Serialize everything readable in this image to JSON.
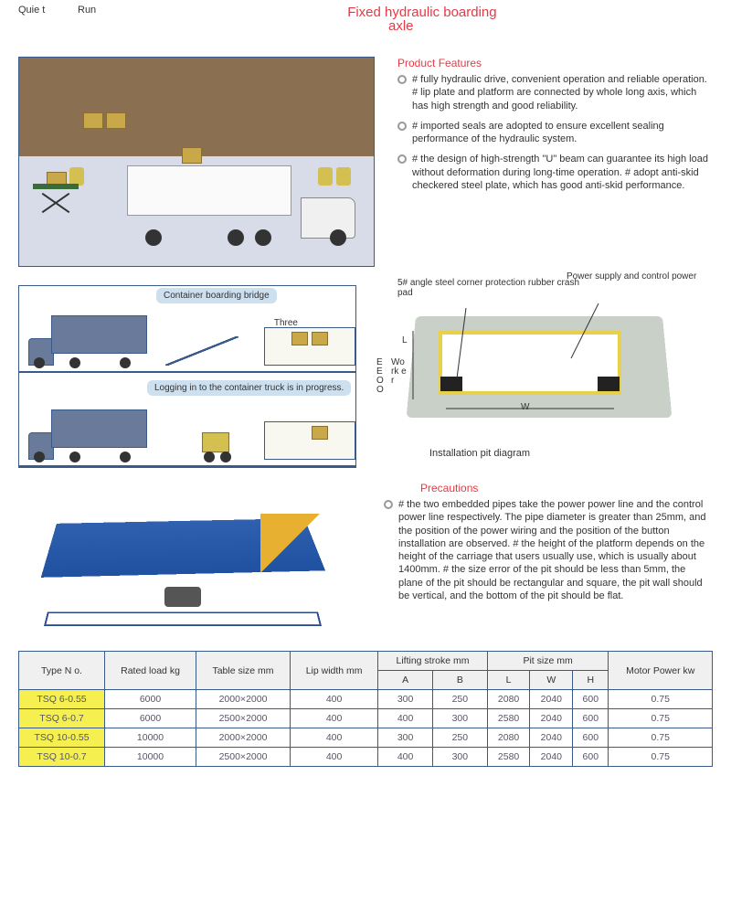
{
  "header": {
    "quiet": "Quie t",
    "run": "Run",
    "title_line1": "Fixed hydraulic boarding",
    "title_line2": "axle"
  },
  "features": {
    "title": "Product Features",
    "items": [
      "# fully hydraulic drive, convenient operation and reliable operation. # lip plate and platform are connected by whole long axis, which has high strength and good reliability.",
      "# imported seals are adopted to ensure excellent sealing performance of the hydraulic system.",
      "# the design of high-strength \"U\" beam can guarantee its high load without deformation during long-time operation. # adopt anti-skid checkered steel plate, which has good anti-skid performance."
    ]
  },
  "diagram2": {
    "label1": "Container boarding bridge",
    "label2": "Three",
    "label3": "Logging in to the container truck is in progress."
  },
  "pit": {
    "label_pad": "5# angle steel corner protection rubber crash pad",
    "label_power": "Power supply and control power",
    "dim_L": "L",
    "dim_W": "W",
    "dim_side": "E E O O",
    "dim_work": "Wo rk e r",
    "caption": "Installation pit diagram"
  },
  "precautions": {
    "title": "Precautions",
    "text": "# the two embedded pipes take the power power line and the control power line respectively. The pipe diameter is greater than 25mm, and the position of the power wiring and the position of the button installation are observed. # the height of the platform depends on the height of the carriage that users usually use, which is usually about 1400mm. # the size error of the pit should be less than 5mm, the plane of the pit should be rectangular and square, the pit wall should be vertical, and the bottom of the pit should be flat."
  },
  "table": {
    "headers": {
      "type": "Type   N o.",
      "load": "Rated load kg",
      "size": "Table size mm",
      "lip": "Lip width mm",
      "stroke": "Lifting stroke mm",
      "stroke_a": "A",
      "stroke_b": "B",
      "pit": "Pit size            mm",
      "pit_l": "L",
      "pit_w": "W",
      "pit_h": "H",
      "motor": "Motor Power kw"
    },
    "rows": [
      {
        "type": "TSQ 6-0.55",
        "load": "6000",
        "size": "2000×2000",
        "lip": "400",
        "a": "300",
        "b": "250",
        "l": "2080",
        "w": "2040",
        "h": "600",
        "kw": "0.75"
      },
      {
        "type": "TSQ 6-0.7",
        "load": "6000",
        "size": "2500×2000",
        "lip": "400",
        "a": "400",
        "b": "300",
        "l": "2580",
        "w": "2040",
        "h": "600",
        "kw": "0.75"
      },
      {
        "type": "TSQ 10-0.55",
        "load": "10000",
        "size": "2000×2000",
        "lip": "400",
        "a": "300",
        "b": "250",
        "l": "2080",
        "w": "2040",
        "h": "600",
        "kw": "0.75"
      },
      {
        "type": "TSQ 10-0.7",
        "load": "10000",
        "size": "2500×2000",
        "lip": "400",
        "a": "400",
        "b": "300",
        "l": "2580",
        "w": "2040",
        "h": "600",
        "kw": "0.75"
      }
    ]
  },
  "colors": {
    "accent": "#e63946",
    "border": "#3a5a8a",
    "highlight_yellow": "#f5f050",
    "box_tan": "#c9a84a",
    "truck_gray": "#6a7a9a",
    "plate_blue": "#2050a0",
    "side_yellow": "#e8b030"
  }
}
